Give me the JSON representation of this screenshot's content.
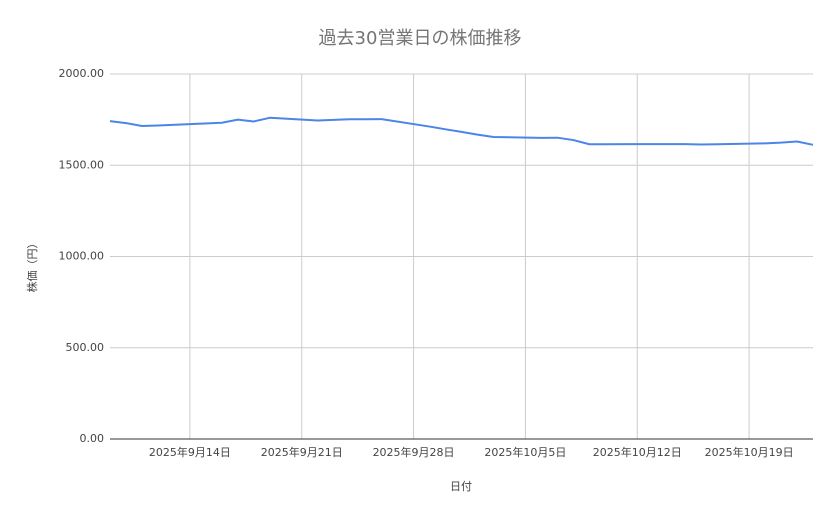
{
  "chart_data": {
    "type": "line",
    "title": "過去30営業日の株価推移",
    "xlabel": "日付",
    "ylabel": "株価（円）",
    "x": [
      "2025-09-09",
      "2025-09-10",
      "2025-09-11",
      "2025-09-12",
      "2025-09-16",
      "2025-09-17",
      "2025-09-18",
      "2025-09-19",
      "2025-09-22",
      "2025-09-24",
      "2025-09-25",
      "2025-09-26",
      "2025-09-29",
      "2025-09-30",
      "2025-10-01",
      "2025-10-02",
      "2025-10-03",
      "2025-10-06",
      "2025-10-07",
      "2025-10-08",
      "2025-10-09",
      "2025-10-10",
      "2025-10-14",
      "2025-10-15",
      "2025-10-16",
      "2025-10-17",
      "2025-10-20",
      "2025-10-21",
      "2025-10-22",
      "2025-10-23"
    ],
    "series": [
      {
        "name": "株価",
        "color": "#4a86e8",
        "values": [
          1742,
          1731,
          1715,
          1718,
          1733,
          1750,
          1740,
          1760,
          1745,
          1752,
          1752,
          1753,
          1712,
          1697,
          1683,
          1668,
          1655,
          1650,
          1651,
          1638,
          1615,
          1615,
          1616,
          1616,
          1614,
          1615,
          1620,
          1624,
          1630,
          1612
        ]
      }
    ],
    "xlim": [
      "2025-09-09",
      "2025-10-23"
    ],
    "xticks": [
      {
        "value": "2025-09-14",
        "label": "2025年9月14日"
      },
      {
        "value": "2025-09-21",
        "label": "2025年9月21日"
      },
      {
        "value": "2025-09-28",
        "label": "2025年9月28日"
      },
      {
        "value": "2025-10-05",
        "label": "2025年10月5日"
      },
      {
        "value": "2025-10-12",
        "label": "2025年10月12日"
      },
      {
        "value": "2025-10-19",
        "label": "2025年10月19日"
      }
    ],
    "ylim": [
      0,
      2000
    ],
    "yticks": [
      {
        "value": 0,
        "label": "0.00"
      },
      {
        "value": 500,
        "label": "500.00"
      },
      {
        "value": 1000,
        "label": "1000.00"
      },
      {
        "value": 1500,
        "label": "1500.00"
      },
      {
        "value": 2000,
        "label": "2000.00"
      }
    ],
    "grid": true
  }
}
